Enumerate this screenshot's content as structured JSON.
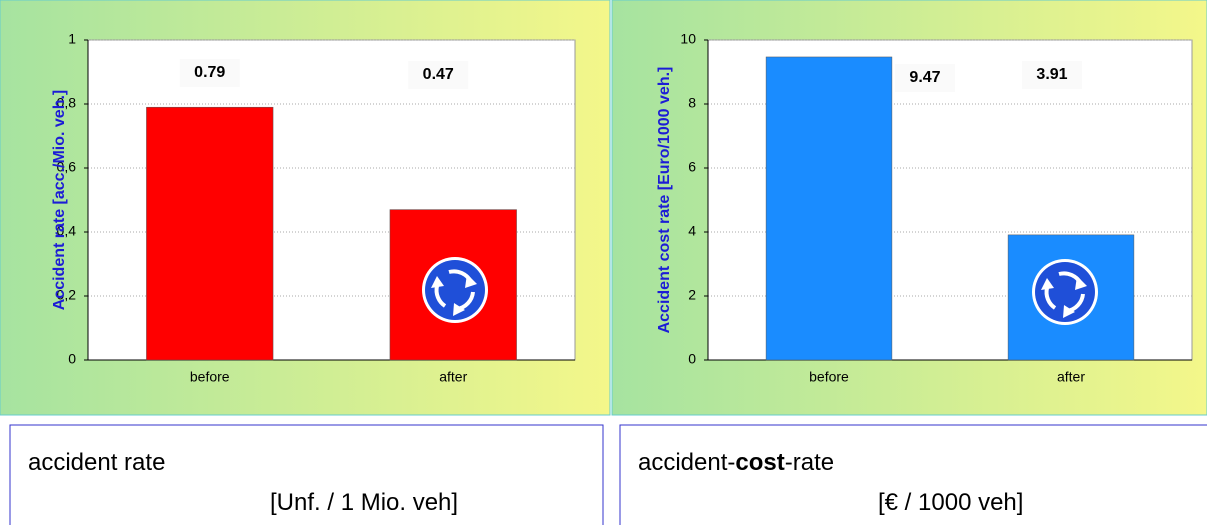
{
  "chart_data": [
    {
      "type": "bar",
      "ylabel": "Accident rate [acc./Mio. veh.]",
      "categories": [
        "before",
        "after"
      ],
      "values": [
        0.79,
        0.47
      ],
      "value_labels": [
        "0.79",
        "0.47"
      ],
      "color": "#ff0000",
      "ylim": [
        0,
        1
      ],
      "yticks": [
        0,
        {
          "value": 0.2,
          "label": "0,2"
        },
        {
          "value": 0.4,
          "label": "0,4"
        },
        {
          "value": 0.6,
          "label": "0,6"
        },
        {
          "value": 0.8,
          "label": "0,8"
        },
        1
      ],
      "grid": true
    },
    {
      "type": "bar",
      "ylabel": "Accident cost rate [Euro/1000 veh.]",
      "categories": [
        "before",
        "after"
      ],
      "values": [
        9.47,
        3.91
      ],
      "value_labels": [
        "9.47",
        "3.91"
      ],
      "color": "#1a8cff",
      "ylim": [
        0,
        10
      ],
      "yticks": [
        0,
        2,
        4,
        6,
        8,
        10
      ],
      "grid": true
    }
  ],
  "captions": [
    {
      "title": [
        "accident rate"
      ],
      "unit": "[Unf. / 1 Mio. veh]"
    },
    {
      "title": [
        "accident-",
        "cost",
        "-rate"
      ],
      "unit": "[€ / 1000 veh]"
    }
  ]
}
